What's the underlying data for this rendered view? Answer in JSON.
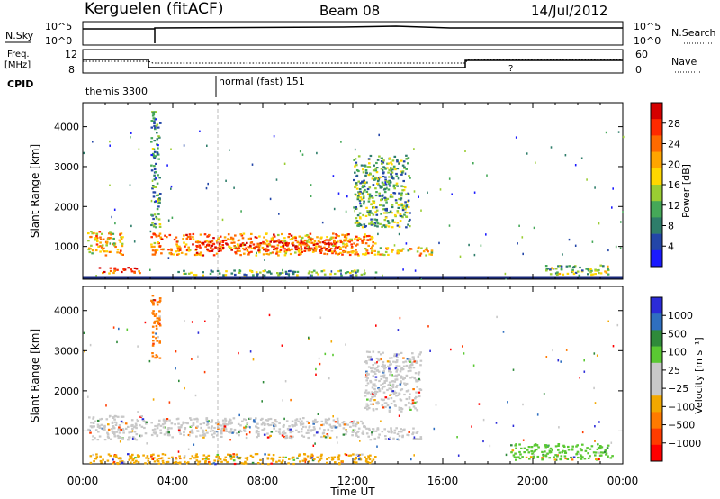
{
  "header": {
    "station": "Kerguelen (fitACF)",
    "beam": "Beam 08",
    "date": "14/Jul/2012"
  },
  "strips": {
    "nsky_label": "N.Sky",
    "nsky_ticks": [
      "10^5",
      "10^0"
    ],
    "nsearch_label": "N.Search",
    "nsearch_ticks": [
      "10^5",
      "10^0"
    ],
    "freq_label_1": "Freq.",
    "freq_label_2": "[MHz]",
    "freq_ticks": [
      "12",
      "8"
    ],
    "nave_label": "Nave",
    "nave_ticks": [
      "60",
      "0"
    ],
    "cpid_label": "CPID",
    "cpid_entries": [
      "themis 3300",
      "normal (fast) 151"
    ],
    "freq_unknown_marker": "?"
  },
  "chart_data": [
    {
      "type": "heatmap",
      "title": "",
      "ylabel": "Slant Range [km]",
      "xlabel": "",
      "ylim": [
        180,
        4600
      ],
      "y_ticks": [
        "1000",
        "2000",
        "3000",
        "4000"
      ],
      "colorbar_label": "Power [dB]",
      "colorbar_ticks": [
        "4",
        "8",
        "12",
        "16",
        "20",
        "24",
        "28"
      ],
      "colorbar_colors": [
        "#1a1aff",
        "#2346a8",
        "#2e7d6a",
        "#45a858",
        "#9acd32",
        "#ffd700",
        "#ffa500",
        "#ff6a00",
        "#ff2a00",
        "#d40000"
      ],
      "regions": [
        {
          "t0": 0.2,
          "t1": 1.8,
          "r0": 800,
          "r1": 1400,
          "level": 0.6
        },
        {
          "t0": 0.5,
          "t1": 2.5,
          "r0": 350,
          "r1": 500,
          "level": 0.8
        },
        {
          "t0": 3.0,
          "t1": 13.0,
          "r0": 800,
          "r1": 1350,
          "level": 0.7
        },
        {
          "t0": 5.0,
          "t1": 11.5,
          "r0": 900,
          "r1": 1150,
          "level": 0.9
        },
        {
          "t0": 12.0,
          "t1": 14.5,
          "r0": 1500,
          "r1": 3300,
          "level": 0.35
        },
        {
          "t0": 13.0,
          "t1": 15.5,
          "r0": 800,
          "r1": 1000,
          "level": 0.6
        },
        {
          "t0": 4.0,
          "t1": 13.0,
          "r0": 300,
          "r1": 420,
          "level": 0.35
        },
        {
          "t0": 20.5,
          "t1": 23.5,
          "r0": 300,
          "r1": 550,
          "level": 0.4
        },
        {
          "t0": 3.0,
          "t1": 3.4,
          "r0": 1500,
          "r1": 4400,
          "level": 0.3
        }
      ]
    },
    {
      "type": "heatmap",
      "title": "",
      "ylabel": "Slant Range [km]",
      "xlabel": "Time UT",
      "ylim": [
        180,
        4600
      ],
      "y_ticks": [
        "1000",
        "2000",
        "3000",
        "4000"
      ],
      "x_ticks": [
        "00:00",
        "04:00",
        "08:00",
        "12:00",
        "16:00",
        "20:00",
        "00:00"
      ],
      "colorbar_label": "Velocity [m s⁻¹]",
      "colorbar_ticks": [
        "1000",
        "500",
        "100",
        "25",
        "−25",
        "−100",
        "−500",
        "−1000"
      ],
      "colorbar_colors": [
        "#2b2bd8",
        "#2f6fc0",
        "#2f8a3a",
        "#5ac832",
        "#c8c8c8",
        "#c8c8c8",
        "#f2a800",
        "#ff7a00",
        "#ff3c00",
        "#ff0000"
      ],
      "regions": [
        {
          "t0": 0.2,
          "t1": 2.8,
          "r0": 800,
          "r1": 1400,
          "color": "#c8c8c8"
        },
        {
          "t0": 3.0,
          "t1": 12.5,
          "r0": 850,
          "r1": 1350,
          "color": "#c8c8c8"
        },
        {
          "t0": 12.5,
          "t1": 15.0,
          "r0": 1500,
          "r1": 3000,
          "color": "#c8c8c8"
        },
        {
          "t0": 12.5,
          "t1": 15.0,
          "r0": 800,
          "r1": 1100,
          "color": "#c8c8c8"
        },
        {
          "t0": 0.3,
          "t1": 13.0,
          "r0": 200,
          "r1": 450,
          "color": "#f2a800"
        },
        {
          "t0": 19.0,
          "t1": 23.5,
          "r0": 300,
          "r1": 700,
          "color": "#5ac832"
        },
        {
          "t0": 3.0,
          "t1": 3.4,
          "r0": 2800,
          "r1": 4400,
          "color": "#ff7a00"
        }
      ]
    }
  ]
}
